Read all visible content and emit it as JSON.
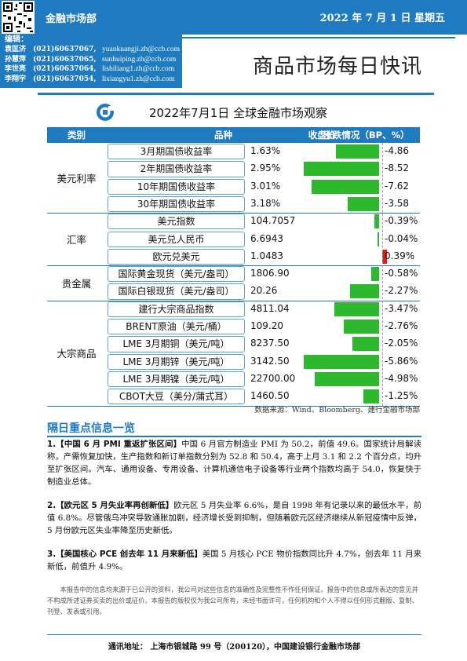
{
  "header": {
    "department": "金融市场部",
    "date": "2022 年 7 月 1 日   星期五"
  },
  "editors": {
    "title": "编辑：",
    "list": [
      {
        "name": "袁匡济",
        "phone": "(021)60637067,",
        "email": "yuankuangji.zh@ccb.com"
      },
      {
        "name": "孙慧萍",
        "phone": "(021)60637065,",
        "email": "sunhuiping.zh@ccb.com"
      },
      {
        "name": "李世亮",
        "phone": "(021)60637064,",
        "email": "lishiliang1.zh@ccb.com"
      },
      {
        "name": "李翔宇",
        "phone": "(021)60637054,",
        "email": "lixiangyu1.zh@ccb.com"
      }
    ]
  },
  "report_title": "商品市场每日快讯",
  "market": {
    "title": "2022年7月1日  全球金融市场观察",
    "columns": [
      "类别",
      "品种",
      "收盘价",
      "涨跌情况（BP、%）"
    ],
    "groups": [
      "美元利率",
      "汇率",
      "贵金属",
      "大宗商品"
    ],
    "rows": [
      {
        "name": "3月期国债收益率",
        "close": "1.63%",
        "change": "-4.86"
      },
      {
        "name": "2年期国债收益率",
        "close": "2.95%",
        "change": "-8.52"
      },
      {
        "name": "10年期国债收益率",
        "close": "3.01%",
        "change": "-7.62"
      },
      {
        "name": "30年期国债收益率",
        "close": "3.18%",
        "change": "-3.58"
      },
      {
        "name": "美元指数",
        "close": "104.7057",
        "change": "-0.39%"
      },
      {
        "name": "美元兑人民币",
        "close": "6.6943",
        "change": "-0.04%"
      },
      {
        "name": "欧元兑美元",
        "close": "1.0483",
        "change": "0.39%"
      },
      {
        "name": "国际黄金现货（美元/盎司）",
        "close": "1806.90",
        "change": "-0.58%"
      },
      {
        "name": "国际白银现货（美元/盎司）",
        "close": "20.26",
        "change": "-2.27%"
      },
      {
        "name": "建行大宗商品指数",
        "close": "4811.04",
        "change": "-3.47%"
      },
      {
        "name": "BRENT原油（美元/桶）",
        "close": "109.20",
        "change": "-2.76%"
      },
      {
        "name": "LME 3月期铜（美元/吨）",
        "close": "8237.50",
        "change": "-2.05%"
      },
      {
        "name": "LME 3月期锌（美元/吨）",
        "close": "3142.50",
        "change": "-5.86%"
      },
      {
        "name": "LME 3月期镍（美元/吨）",
        "close": "22700.00",
        "change": "-4.98%"
      },
      {
        "name": "CBOT大豆（美分/蒲式耳）",
        "close": "1460.50",
        "change": "-1.25%"
      }
    ],
    "source": "数据来源：Wind、Bloomberg、建行金融市场部",
    "colors": {
      "down": "#2eb82e",
      "up": "#e21a1a",
      "accent": "#1f7ac0"
    }
  },
  "news": {
    "heading": "隔日重点信息一览",
    "items": [
      {
        "title": "1.【中国 6 月 PMI 重返扩张区间】",
        "body": "中国 6 月官方制造业 PMI 为 50.2，前值 49.6。国家统计局解读称，产需恢复加快，生产指数和新订单指数分别为 52.8 和 50.4，高于上月 3.1 和 2.2 个百分点，均升至扩张区间。汽车、通用设备、专用设备、计算机通信电子设备等行业两个指数均高于 54.0，恢复快于制造业总体。"
      },
      {
        "title": "2.【欧元区 5 月失业率再创新低】",
        "body": "欧元区 5 月失业率 6.6%，是自 1998 年有记录以来的最低水平，前值 6.8%。尽管俄乌冲突导致通胀加剧，经济增长受到抑制，但随着欧元区经济继续从新冠疫情中反弹，5 月份欧元区失业率降至历史新低。"
      },
      {
        "title": "3.【美国核心 PCE 创去年 11 月来新低】",
        "body": "美国 5 月核心 PCE 物价指数同比升 4.7%，创去年 11 月来新低，前值升 4.9%。"
      }
    ]
  },
  "disclaimer": "本报告中的信息均来源于已公开的资料，我公司对这些信息的准确性及完整性不作任何保证。报告中的信息或所表达的意见并不构成所述证券买卖的出价或征价。本报告的版权仅为我公司所有，未经书面许可，任何机构和个人不得以任何形式翻版、复制、刊登、发表或引用。",
  "footer": "通讯地址：  上海市银城路 99 号（200120），中国建设银行金融市场部"
}
